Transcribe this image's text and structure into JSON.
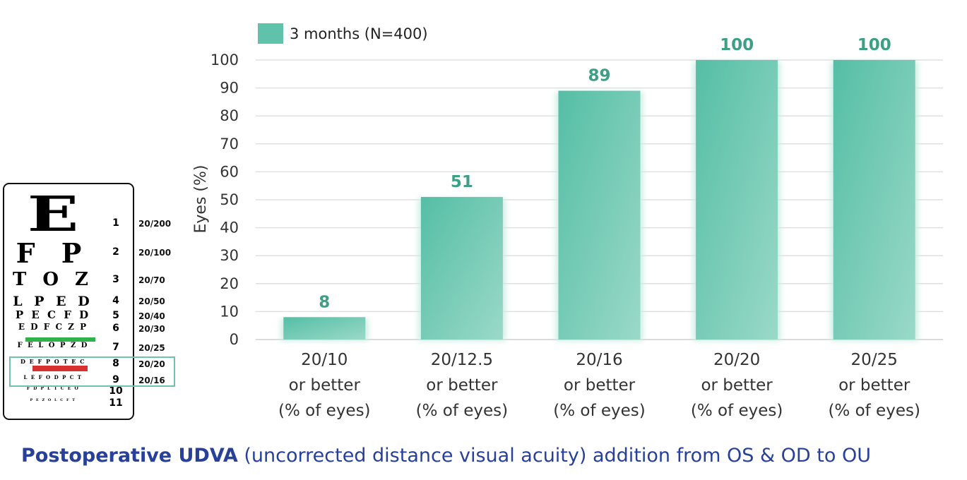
{
  "chart_data": {
    "type": "bar",
    "categories": [
      [
        "20/10",
        "or better",
        "(% of eyes)"
      ],
      [
        "20/12.5",
        "or better",
        "(% of eyes)"
      ],
      [
        "20/16",
        "or better",
        "(% of eyes)"
      ],
      [
        "20/20",
        "or better",
        "(% of eyes)"
      ],
      [
        "20/25",
        "or better",
        "(% of eyes)"
      ]
    ],
    "series": [
      {
        "name": "3 months (N=400)",
        "values": [
          8,
          51,
          89,
          100,
          100
        ]
      }
    ],
    "data_labels": [
      "8",
      "51",
      "89",
      "100",
      "100"
    ],
    "ylabel": "Eyes (%)",
    "xlabel": "",
    "ylim": [
      0,
      100
    ],
    "yticks": [
      0,
      10,
      20,
      30,
      40,
      50,
      60,
      70,
      80,
      90,
      100
    ],
    "grid": true,
    "legend_position": "top-left",
    "colors": {
      "bar": "#5fc2aa",
      "bar_light": "#94d6c4",
      "value_label": "#3e9e86",
      "grid": "#e0e0e0"
    }
  },
  "eye_chart": {
    "rows": [
      {
        "letters": "E",
        "num": "1",
        "acuity": "20/200"
      },
      {
        "letters": "F P",
        "num": "2",
        "acuity": "20/100"
      },
      {
        "letters": "T O Z",
        "num": "3",
        "acuity": "20/70"
      },
      {
        "letters": "L P E D",
        "num": "4",
        "acuity": "20/50"
      },
      {
        "letters": "P E C F D",
        "num": "5",
        "acuity": "20/40"
      },
      {
        "letters": "E D F C Z P",
        "num": "6",
        "acuity": "20/30"
      },
      {
        "letters": "F E L O P Z D",
        "num": "7",
        "acuity": "20/25"
      },
      {
        "letters": "D E F P O T E C",
        "num": "8",
        "acuity": "20/20"
      },
      {
        "letters": "L E F O D P C T",
        "num": "9",
        "acuity": "20/16"
      },
      {
        "letters": "F D P L T C E O",
        "num": "10",
        "acuity": ""
      },
      {
        "letters": "P E Z O L C F T",
        "num": "11",
        "acuity": ""
      }
    ],
    "colors": {
      "green_line": "#2db34a",
      "red_line": "#d8302f",
      "highlight": "#6cc4ad"
    }
  },
  "caption": {
    "bold": "Postoperative UDVA",
    "regular": " (uncorrected distance visual acuity)  addition from OS & OD to OU",
    "color": "#27409a"
  }
}
